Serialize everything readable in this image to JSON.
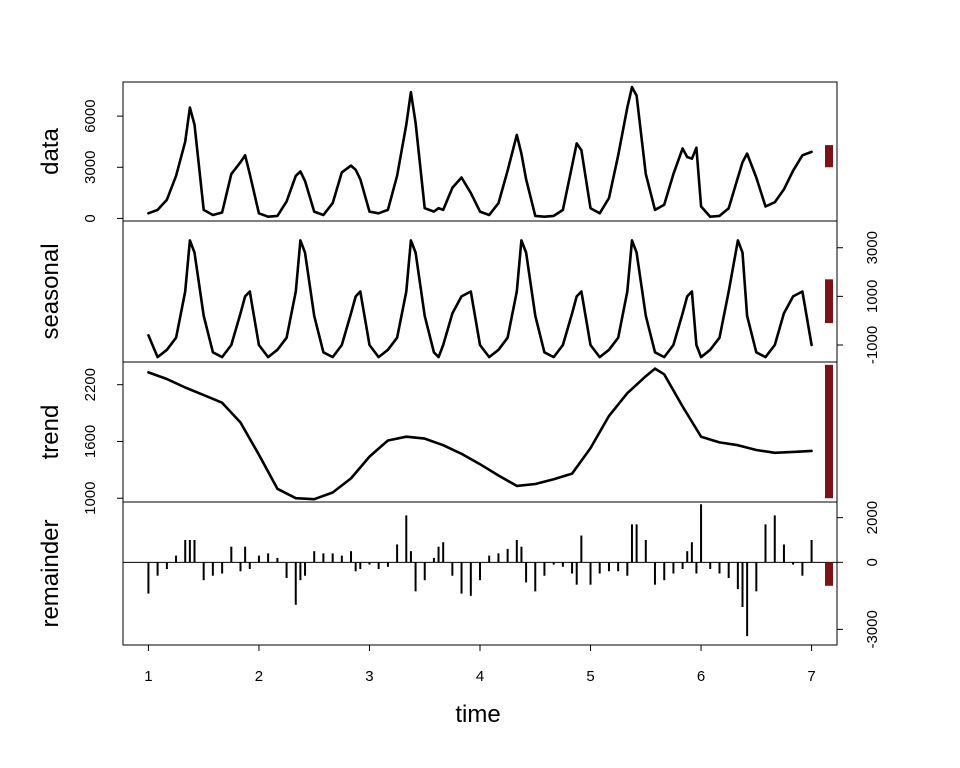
{
  "chart_data": {
    "type": "line",
    "colors": {
      "line": "#000000",
      "range_bar": "#7b1414",
      "background": "#ffffff"
    },
    "x_axis": {
      "label": "time",
      "range": [
        0.77,
        7.23
      ],
      "ticks": [
        1,
        2,
        3,
        4,
        5,
        6,
        7
      ],
      "tick_labels": [
        "1",
        "2",
        "3",
        "4",
        "5",
        "6",
        "7"
      ]
    },
    "panels": [
      {
        "name": "data",
        "kind": "line",
        "axis_side": "left",
        "ylim": [
          -150,
          8000
        ],
        "ticks": [
          0,
          3000,
          6000
        ],
        "tick_labels": [
          "0",
          "3000",
          "6000"
        ],
        "range_bar": [
          3000,
          4300
        ],
        "x": [
          1.0,
          1.083,
          1.167,
          1.25,
          1.333,
          1.375,
          1.417,
          1.5,
          1.583,
          1.667,
          1.75,
          1.833,
          1.875,
          1.917,
          2.0,
          2.083,
          2.167,
          2.25,
          2.333,
          2.375,
          2.417,
          2.5,
          2.583,
          2.667,
          2.75,
          2.833,
          2.875,
          2.917,
          3.0,
          3.083,
          3.167,
          3.25,
          3.333,
          3.375,
          3.417,
          3.5,
          3.583,
          3.625,
          3.667,
          3.75,
          3.833,
          3.917,
          4.0,
          4.083,
          4.167,
          4.25,
          4.333,
          4.375,
          4.417,
          4.5,
          4.583,
          4.667,
          4.75,
          4.833,
          4.875,
          4.917,
          5.0,
          5.083,
          5.167,
          5.25,
          5.333,
          5.375,
          5.417,
          5.5,
          5.583,
          5.667,
          5.75,
          5.833,
          5.875,
          5.917,
          5.958,
          6.0,
          6.083,
          6.167,
          6.25,
          6.333,
          6.375,
          6.417,
          6.5,
          6.583,
          6.667,
          6.75,
          6.833,
          6.917,
          7.0
        ],
        "y": [
          300,
          500,
          1100,
          2500,
          4500,
          6500,
          5500,
          500,
          200,
          350,
          2600,
          3300,
          3700,
          2600,
          300,
          100,
          150,
          1000,
          2500,
          2750,
          2200,
          400,
          200,
          900,
          2700,
          3100,
          2850,
          2300,
          400,
          300,
          500,
          2500,
          5500,
          7400,
          5600,
          600,
          400,
          600,
          500,
          1800,
          2400,
          1500,
          400,
          200,
          900,
          2800,
          4900,
          3800,
          2300,
          150,
          100,
          150,
          500,
          3100,
          4400,
          4000,
          600,
          300,
          1200,
          3700,
          6500,
          7700,
          7200,
          2600,
          500,
          800,
          2600,
          4100,
          3600,
          3500,
          4150,
          700,
          100,
          150,
          600,
          2400,
          3300,
          3800,
          2400,
          700,
          950,
          1700,
          2800,
          3700,
          3900
        ]
      },
      {
        "name": "seasonal",
        "kind": "line",
        "axis_side": "right",
        "ylim": [
          -1700,
          4100
        ],
        "ticks": [
          -1000,
          1000,
          3000
        ],
        "tick_labels": [
          "-1000",
          "1000",
          "3000"
        ],
        "range_bar": [
          -100,
          1700
        ],
        "x": [
          1.0,
          1.083,
          1.167,
          1.25,
          1.333,
          1.375,
          1.417,
          1.5,
          1.583,
          1.667,
          1.75,
          1.833,
          1.875,
          1.917,
          2.0,
          2.083,
          2.167,
          2.25,
          2.333,
          2.375,
          2.417,
          2.5,
          2.583,
          2.667,
          2.75,
          2.833,
          2.875,
          2.917,
          3.0,
          3.083,
          3.167,
          3.25,
          3.333,
          3.375,
          3.417,
          3.5,
          3.583,
          3.625,
          3.667,
          3.75,
          3.833,
          3.917,
          4.0,
          4.083,
          4.167,
          4.25,
          4.333,
          4.375,
          4.417,
          4.5,
          4.583,
          4.667,
          4.75,
          4.833,
          4.875,
          4.917,
          5.0,
          5.083,
          5.167,
          5.25,
          5.333,
          5.375,
          5.417,
          5.5,
          5.583,
          5.667,
          5.75,
          5.833,
          5.875,
          5.917,
          5.958,
          6.0,
          6.083,
          6.167,
          6.25,
          6.333,
          6.375,
          6.417,
          6.5,
          6.583,
          6.667,
          6.75,
          6.833,
          6.917,
          7.0
        ],
        "y": [
          -600,
          -1500,
          -1200,
          -700,
          1200,
          3300,
          2800,
          200,
          -1300,
          -1500,
          -1000,
          300,
          1000,
          1200,
          -1000,
          -1500,
          -1200,
          -700,
          1200,
          3300,
          2800,
          200,
          -1300,
          -1500,
          -1000,
          300,
          1000,
          1200,
          -1000,
          -1500,
          -1200,
          -700,
          1200,
          3300,
          2800,
          200,
          -1300,
          -1500,
          -1000,
          300,
          1000,
          1200,
          -1000,
          -1500,
          -1200,
          -700,
          1200,
          3300,
          2800,
          200,
          -1300,
          -1500,
          -1000,
          300,
          1000,
          1200,
          -1000,
          -1500,
          -1200,
          -700,
          1200,
          3300,
          2800,
          200,
          -1300,
          -1500,
          -1000,
          300,
          1000,
          1200,
          -1000,
          -1500,
          -1200,
          -700,
          1200,
          3300,
          2800,
          200,
          -1300,
          -1500,
          -1000,
          300,
          1000,
          1200,
          -1000
        ]
      },
      {
        "name": "trend",
        "kind": "line",
        "axis_side": "left",
        "ylim": [
          960,
          2440
        ],
        "ticks": [
          1000,
          1600,
          2200
        ],
        "tick_labels": [
          "1000",
          "1600",
          "2200"
        ],
        "range_bar": [
          1000,
          2410
        ],
        "x": [
          1.0,
          1.167,
          1.333,
          1.5,
          1.667,
          1.833,
          2.0,
          2.167,
          2.333,
          2.5,
          2.667,
          2.833,
          3.0,
          3.167,
          3.333,
          3.5,
          3.667,
          3.833,
          4.0,
          4.167,
          4.333,
          4.5,
          4.667,
          4.833,
          5.0,
          5.167,
          5.333,
          5.5,
          5.583,
          5.667,
          5.833,
          6.0,
          6.167,
          6.333,
          6.5,
          6.667,
          6.833,
          7.0
        ],
        "y": [
          2330,
          2260,
          2170,
          2090,
          2010,
          1800,
          1460,
          1100,
          1000,
          990,
          1060,
          1210,
          1440,
          1610,
          1650,
          1630,
          1560,
          1470,
          1360,
          1240,
          1130,
          1150,
          1200,
          1260,
          1530,
          1870,
          2110,
          2290,
          2370,
          2310,
          1970,
          1650,
          1590,
          1560,
          1510,
          1480,
          1490,
          1500
        ]
      },
      {
        "name": "remainder",
        "kind": "bar",
        "axis_side": "right",
        "ylim": [
          -3700,
          2700
        ],
        "ticks": [
          -3000,
          0,
          2000
        ],
        "tick_labels": [
          "-3000",
          "0",
          "2000"
        ],
        "range_bar": [
          -1050,
          0
        ],
        "x": [
          1.0,
          1.083,
          1.167,
          1.25,
          1.333,
          1.375,
          1.417,
          1.5,
          1.583,
          1.667,
          1.75,
          1.833,
          1.875,
          1.917,
          2.0,
          2.083,
          2.167,
          2.25,
          2.333,
          2.375,
          2.417,
          2.5,
          2.583,
          2.667,
          2.75,
          2.833,
          2.875,
          2.917,
          3.0,
          3.083,
          3.167,
          3.25,
          3.333,
          3.375,
          3.417,
          3.5,
          3.583,
          3.625,
          3.667,
          3.75,
          3.833,
          3.917,
          4.0,
          4.083,
          4.167,
          4.25,
          4.333,
          4.375,
          4.417,
          4.5,
          4.583,
          4.667,
          4.75,
          4.833,
          4.875,
          4.917,
          5.0,
          5.083,
          5.167,
          5.25,
          5.333,
          5.375,
          5.417,
          5.5,
          5.583,
          5.667,
          5.75,
          5.833,
          5.875,
          5.917,
          5.958,
          6.0,
          6.083,
          6.167,
          6.25,
          6.333,
          6.375,
          6.417,
          6.5,
          6.583,
          6.667,
          6.75,
          6.833,
          6.917,
          7.0
        ],
        "y": [
          -1400,
          -600,
          -300,
          300,
          1000,
          1000,
          1000,
          -800,
          -600,
          -500,
          700,
          -400,
          700,
          -300,
          300,
          400,
          200,
          -700,
          -1900,
          -800,
          -600,
          500,
          400,
          400,
          300,
          500,
          -400,
          -300,
          -100,
          -300,
          -200,
          800,
          2100,
          500,
          -1300,
          -800,
          200,
          700,
          900,
          -600,
          -1400,
          -1500,
          -800,
          300,
          400,
          600,
          1000,
          700,
          -900,
          -1300,
          -600,
          -100,
          -200,
          -500,
          -1000,
          1200,
          -1000,
          -500,
          -400,
          -400,
          -600,
          1700,
          1700,
          1000,
          -1000,
          -800,
          -500,
          -300,
          500,
          900,
          -500,
          2600,
          -300,
          -500,
          -700,
          -1200,
          -2000,
          -3300,
          -1300,
          1700,
          2100,
          800,
          -100,
          -600,
          1000
        ]
      }
    ]
  }
}
